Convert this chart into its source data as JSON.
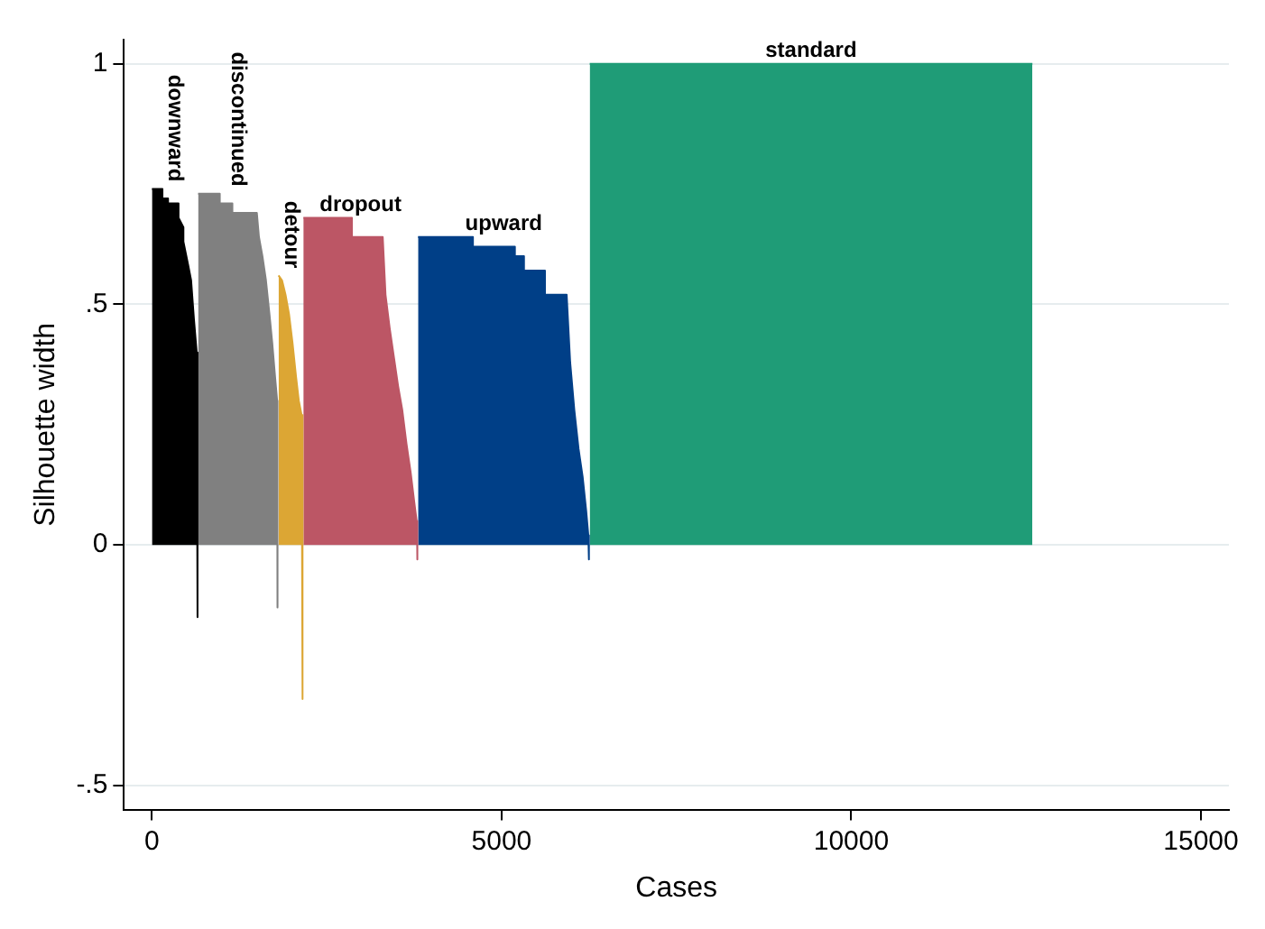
{
  "chart_data": {
    "type": "area",
    "xlabel": "Cases",
    "ylabel": "Silhouette width",
    "xlim": [
      -400,
      15400
    ],
    "ylim": [
      -0.55,
      1.05
    ],
    "xticks": [
      0,
      5000,
      10000,
      15000
    ],
    "yticks": [
      {
        "value": -0.5,
        "label": "-.5"
      },
      {
        "value": 0,
        "label": "0"
      },
      {
        "value": 0.5,
        "label": ".5"
      },
      {
        "value": 1,
        "label": "1"
      }
    ],
    "grid": "y",
    "legend": false,
    "series": [
      {
        "name": "downward",
        "color": "#000000",
        "x": [
          0,
          150,
          150,
          230,
          230,
          380,
          380,
          450,
          450,
          520,
          560,
          600,
          640,
          650,
          650,
          655
        ],
        "values": [
          0.74,
          0.74,
          0.72,
          0.72,
          0.71,
          0.71,
          0.68,
          0.66,
          0.63,
          0.58,
          0.55,
          0.47,
          0.4,
          0.4,
          -0.15,
          -0.15
        ]
      },
      {
        "name": "discontinued",
        "color": "#808080",
        "x": [
          660,
          970,
          970,
          1150,
          1150,
          1500,
          1530,
          1580,
          1630,
          1680,
          1720,
          1760,
          1790,
          1795,
          1795,
          1805
        ],
        "values": [
          0.73,
          0.73,
          0.71,
          0.71,
          0.69,
          0.69,
          0.64,
          0.6,
          0.55,
          0.48,
          0.42,
          0.35,
          0.3,
          0.3,
          -0.13,
          -0.13
        ]
      },
      {
        "name": "detour",
        "color": "#dca634",
        "x": [
          1810,
          1860,
          1910,
          1960,
          2010,
          2060,
          2100,
          2140,
          2150,
          2150,
          2160
        ],
        "values": [
          0.56,
          0.55,
          0.52,
          0.48,
          0.42,
          0.35,
          0.3,
          0.27,
          0.27,
          -0.32,
          -0.32
        ]
      },
      {
        "name": "dropout",
        "color": "#bc5665",
        "x": [
          2165,
          2860,
          2860,
          3300,
          3340,
          3400,
          3460,
          3520,
          3580,
          3640,
          3700,
          3750,
          3785,
          3790,
          3790,
          3800
        ],
        "values": [
          0.68,
          0.68,
          0.64,
          0.64,
          0.52,
          0.45,
          0.39,
          0.33,
          0.28,
          0.21,
          0.15,
          0.09,
          0.05,
          0.05,
          -0.03,
          -0.03
        ]
      },
      {
        "name": "upward",
        "color": "#003f87",
        "x": [
          3805,
          4590,
          4590,
          5190,
          5190,
          5320,
          5320,
          5620,
          5620,
          5930,
          5980,
          6040,
          6100,
          6160,
          6210,
          6240,
          6245,
          6245,
          6255
        ],
        "values": [
          0.64,
          0.64,
          0.62,
          0.62,
          0.6,
          0.6,
          0.57,
          0.57,
          0.52,
          0.52,
          0.38,
          0.28,
          0.2,
          0.14,
          0.07,
          0.02,
          0.02,
          -0.03,
          -0.03
        ]
      },
      {
        "name": "standard",
        "color": "#1f9c77",
        "x": [
          6260,
          12590
        ],
        "values": [
          1,
          1
        ]
      }
    ]
  }
}
